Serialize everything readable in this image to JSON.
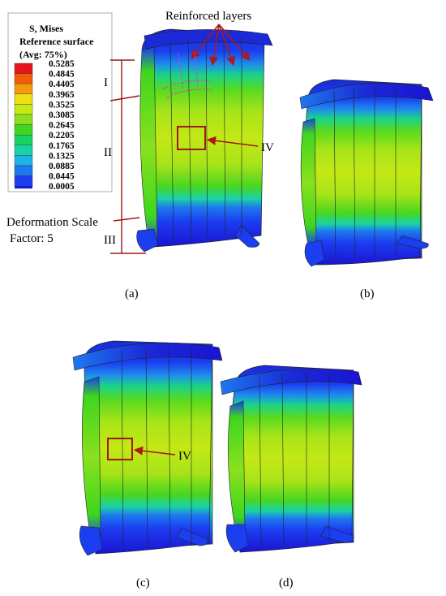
{
  "legend": {
    "title_lines": [
      "S, Mises",
      "Reference surface",
      "(Avg: 75%)"
    ],
    "values": [
      "0.5285",
      "0.4845",
      "0.4405",
      "0.3965",
      "0.3525",
      "0.3085",
      "0.2645",
      "0.2205",
      "0.1765",
      "0.1325",
      "0.0885",
      "0.0445",
      "0.0005"
    ],
    "colors": [
      "#e8141c",
      "#f25a0a",
      "#f59a0c",
      "#eede12",
      "#c6ea16",
      "#8ae01e",
      "#3ed61e",
      "#1ad25e",
      "#18d2a8",
      "#1ab4e6",
      "#1e78f0",
      "#1c3ef0",
      "#1a14d2"
    ]
  },
  "annotations": {
    "reinforced_layers": "Reinforced layers",
    "zone_1": "I",
    "zone_2": "II",
    "zone_3": "III",
    "zone_4a": "IV",
    "zone_4c": "IV",
    "deformation_line1": "Deformation Scale",
    "deformation_line2": "Factor: 5"
  },
  "panels": {
    "a": "(a)",
    "b": "(b)",
    "c": "(c)",
    "d": "(d)"
  }
}
